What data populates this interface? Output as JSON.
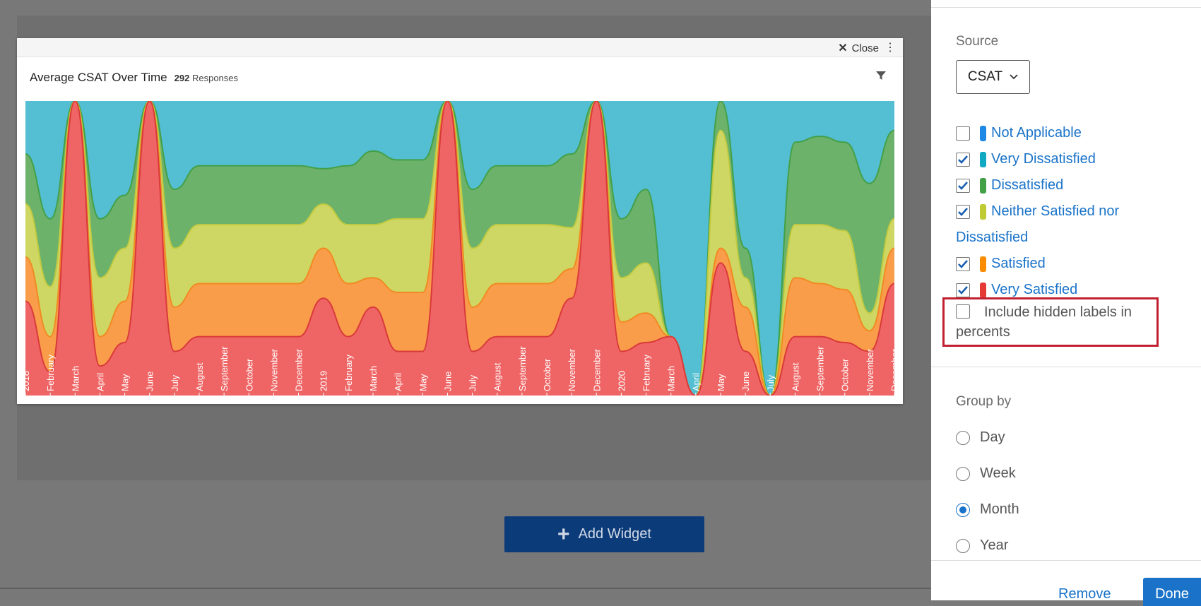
{
  "widget": {
    "close_label": "Close",
    "title": "Average CSAT Over Time",
    "response_count": "292",
    "responses_label": "Responses"
  },
  "add_widget_label": "Add Widget",
  "panel": {
    "source_label": "Source",
    "source_value": "CSAT",
    "categories": [
      {
        "label": "Not Applicable",
        "color": "#1e88e5",
        "checked": false
      },
      {
        "label": "Very Dissatisfied",
        "color": "#0fa9c2",
        "checked": true
      },
      {
        "label": "Dissatisfied",
        "color": "#43a047",
        "checked": true
      },
      {
        "label": "Neither Satisfied nor",
        "label_cont": "Dissatisfied",
        "color": "#c0ca33",
        "checked": true
      },
      {
        "label": "Satisfied",
        "color": "#fb8c00",
        "checked": true
      },
      {
        "label": "Very Satisfied",
        "color": "#e53935",
        "checked": true
      }
    ],
    "hidden_labels_text": "Include hidden labels in percents",
    "group_by_label": "Group by",
    "group_options": [
      "Day",
      "Week",
      "Month",
      "Year"
    ],
    "group_selected": "Month",
    "remove_label": "Remove",
    "done_label": "Done"
  },
  "chart_data": {
    "type": "area",
    "stacked": true,
    "normalized": true,
    "title": "Average CSAT Over Time",
    "x": [
      "2018",
      "February",
      "March",
      "April",
      "May",
      "June",
      "July",
      "August",
      "September",
      "October",
      "November",
      "December",
      "2019",
      "February",
      "March",
      "April",
      "May",
      "June",
      "July",
      "August",
      "September",
      "October",
      "November",
      "December",
      "2020",
      "February",
      "March",
      "April",
      "May",
      "June",
      "July",
      "August",
      "September",
      "October",
      "November",
      "December"
    ],
    "ylim": [
      0,
      100
    ],
    "series": [
      {
        "name": "Very Satisfied",
        "color": "#ef6565",
        "stroke": "#d93a3a",
        "values": [
          32,
          8,
          100,
          10,
          18,
          100,
          15,
          20,
          20,
          20,
          20,
          20,
          33,
          20,
          30,
          15,
          15,
          100,
          15,
          20,
          20,
          20,
          33,
          100,
          15,
          18,
          20,
          0,
          45,
          15,
          0,
          20,
          20,
          18,
          15,
          38
        ]
      },
      {
        "name": "Satisfied",
        "color": "#f99d4a",
        "stroke": "#f08a22",
        "values": [
          15,
          12,
          0,
          10,
          14,
          0,
          15,
          18,
          18,
          18,
          18,
          18,
          17,
          18,
          10,
          20,
          20,
          0,
          15,
          18,
          18,
          18,
          10,
          0,
          10,
          10,
          0,
          0,
          5,
          15,
          0,
          20,
          18,
          18,
          7,
          12
        ]
      },
      {
        "name": "Neither Satisfied nor Dissatisfied",
        "color": "#cfd764",
        "stroke": "#c2ca40",
        "values": [
          18,
          17,
          0,
          20,
          18,
          0,
          20,
          20,
          20,
          20,
          20,
          20,
          15,
          20,
          18,
          25,
          25,
          0,
          20,
          20,
          20,
          20,
          14,
          0,
          15,
          17,
          0,
          0,
          40,
          10,
          0,
          18,
          20,
          20,
          6,
          10
        ]
      },
      {
        "name": "Dissatisfied",
        "color": "#6cb26b",
        "stroke": "#43a047",
        "values": [
          17,
          23,
          0,
          20,
          18,
          0,
          20,
          20,
          20,
          20,
          20,
          20,
          12,
          20,
          25,
          20,
          20,
          0,
          20,
          20,
          20,
          20,
          25,
          0,
          20,
          25,
          0,
          0,
          15,
          10,
          0,
          28,
          30,
          30,
          44,
          30
        ]
      },
      {
        "name": "Very Dissatisfied",
        "color": "#54bed2",
        "stroke": "#54bed2",
        "values": [
          18,
          40,
          0,
          40,
          32,
          0,
          30,
          22,
          22,
          22,
          22,
          22,
          23,
          22,
          17,
          20,
          20,
          0,
          30,
          22,
          22,
          22,
          18,
          0,
          40,
          30,
          80,
          100,
          0,
          65,
          100,
          14,
          12,
          14,
          28,
          10
        ]
      }
    ]
  }
}
